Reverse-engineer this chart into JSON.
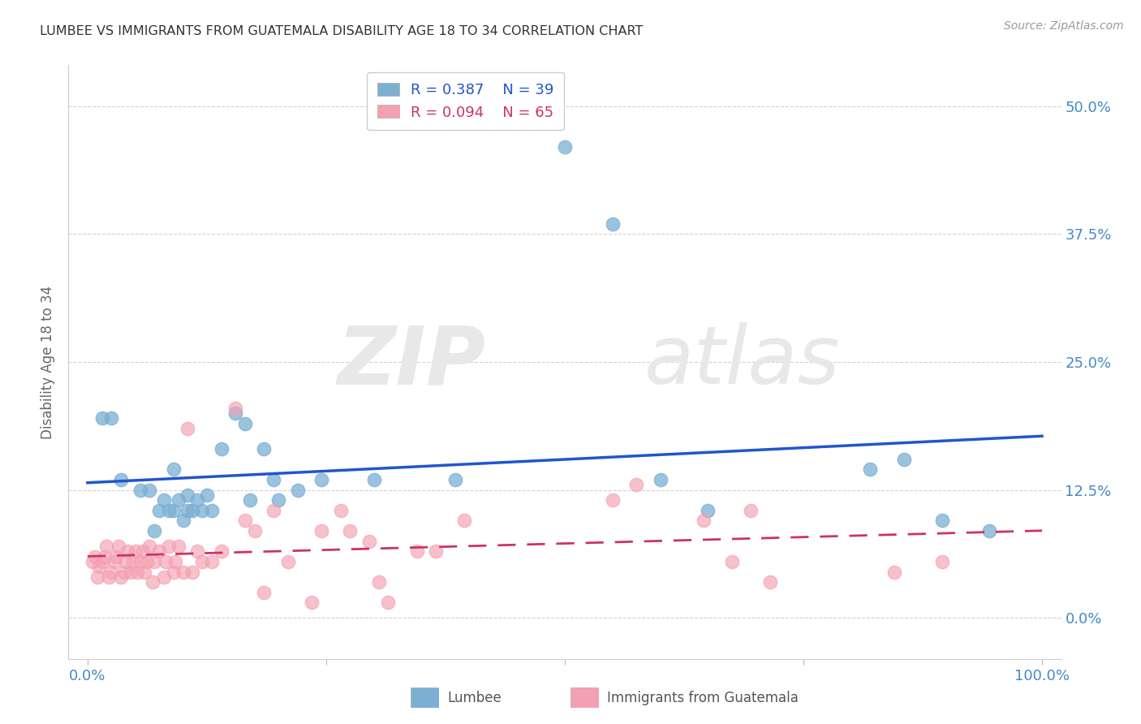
{
  "title": "LUMBEE VS IMMIGRANTS FROM GUATEMALA DISABILITY AGE 18 TO 34 CORRELATION CHART",
  "source": "Source: ZipAtlas.com",
  "ylabel": "Disability Age 18 to 34",
  "xlim": [
    -0.02,
    1.02
  ],
  "ylim": [
    -0.04,
    0.54
  ],
  "yticks": [
    0.0,
    0.125,
    0.25,
    0.375,
    0.5
  ],
  "ytick_labels": [
    "0.0%",
    "12.5%",
    "25.0%",
    "37.5%",
    "50.0%"
  ],
  "xticks": [
    0.0,
    0.25,
    0.5,
    0.75,
    1.0
  ],
  "xtick_labels": [
    "0.0%",
    "",
    "",
    "",
    "100.0%"
  ],
  "lumbee_R": 0.387,
  "lumbee_N": 39,
  "guatemala_R": 0.094,
  "guatemala_N": 65,
  "lumbee_color": "#7BAFD4",
  "guatemala_color": "#F4A0B0",
  "lumbee_line_color": "#2255CC",
  "guatemala_line_color": "#CC3366",
  "tick_label_color": "#4488CC",
  "background_color": "#FFFFFF",
  "watermark_zip": "ZIP",
  "watermark_atlas": "atlas",
  "lumbee_x": [
    0.015,
    0.025,
    0.035,
    0.055,
    0.065,
    0.07,
    0.075,
    0.08,
    0.085,
    0.09,
    0.09,
    0.095,
    0.1,
    0.105,
    0.105,
    0.11,
    0.115,
    0.12,
    0.125,
    0.13,
    0.14,
    0.155,
    0.165,
    0.17,
    0.185,
    0.195,
    0.2,
    0.22,
    0.245,
    0.3,
    0.385,
    0.5,
    0.55,
    0.6,
    0.65,
    0.82,
    0.855,
    0.895,
    0.945
  ],
  "lumbee_y": [
    0.195,
    0.195,
    0.135,
    0.125,
    0.125,
    0.085,
    0.105,
    0.115,
    0.105,
    0.145,
    0.105,
    0.115,
    0.095,
    0.105,
    0.12,
    0.105,
    0.115,
    0.105,
    0.12,
    0.105,
    0.165,
    0.2,
    0.19,
    0.115,
    0.165,
    0.135,
    0.115,
    0.125,
    0.135,
    0.135,
    0.135,
    0.46,
    0.385,
    0.135,
    0.105,
    0.145,
    0.155,
    0.095,
    0.085
  ],
  "guatemala_x": [
    0.005,
    0.008,
    0.01,
    0.012,
    0.015,
    0.018,
    0.02,
    0.022,
    0.025,
    0.028,
    0.03,
    0.032,
    0.035,
    0.038,
    0.04,
    0.042,
    0.045,
    0.048,
    0.05,
    0.052,
    0.055,
    0.058,
    0.06,
    0.062,
    0.065,
    0.068,
    0.07,
    0.075,
    0.08,
    0.082,
    0.085,
    0.09,
    0.092,
    0.095,
    0.1,
    0.105,
    0.11,
    0.115,
    0.12,
    0.13,
    0.14,
    0.155,
    0.165,
    0.175,
    0.185,
    0.195,
    0.21,
    0.235,
    0.245,
    0.265,
    0.275,
    0.295,
    0.305,
    0.315,
    0.345,
    0.365,
    0.395,
    0.55,
    0.575,
    0.645,
    0.675,
    0.695,
    0.715,
    0.845,
    0.895
  ],
  "guatemala_y": [
    0.055,
    0.06,
    0.04,
    0.05,
    0.055,
    0.06,
    0.07,
    0.04,
    0.045,
    0.055,
    0.06,
    0.07,
    0.04,
    0.045,
    0.055,
    0.065,
    0.045,
    0.055,
    0.065,
    0.045,
    0.055,
    0.065,
    0.045,
    0.055,
    0.07,
    0.035,
    0.055,
    0.065,
    0.04,
    0.055,
    0.07,
    0.045,
    0.055,
    0.07,
    0.045,
    0.185,
    0.045,
    0.065,
    0.055,
    0.055,
    0.065,
    0.205,
    0.095,
    0.085,
    0.025,
    0.105,
    0.055,
    0.015,
    0.085,
    0.105,
    0.085,
    0.075,
    0.035,
    0.015,
    0.065,
    0.065,
    0.095,
    0.115,
    0.13,
    0.095,
    0.055,
    0.105,
    0.035,
    0.045,
    0.055
  ]
}
